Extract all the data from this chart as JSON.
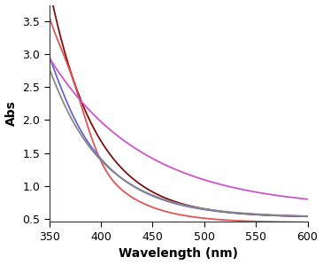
{
  "title": "",
  "xlabel": "Wavelength (nm)",
  "ylabel": "Abs",
  "xlim": [
    350,
    600
  ],
  "ylim": [
    0.45,
    3.75
  ],
  "yticks": [
    0.5,
    1.0,
    1.5,
    2.0,
    2.5,
    3.0,
    3.5
  ],
  "xticks": [
    350,
    400,
    450,
    500,
    550,
    600
  ],
  "curves": [
    {
      "name": "dark_maroon",
      "color": "#7b1010",
      "A": 3.5,
      "k": 0.022,
      "baseline": 0.52,
      "peak_wl": 350,
      "peak_boost": 0.0,
      "peak_sigma": 15
    },
    {
      "name": "red",
      "color": "#e05555",
      "A": 2.85,
      "k": 0.025,
      "baseline": 0.44,
      "peak_wl": 370,
      "peak_boost": 0.58,
      "peak_sigma": 17
    },
    {
      "name": "blue_purple",
      "color": "#6666cc",
      "A": 2.42,
      "k": 0.02,
      "baseline": 0.52,
      "peak_wl": 358,
      "peak_boost": 0.05,
      "peak_sigma": 12
    },
    {
      "name": "gray",
      "color": "#888888",
      "A": 2.25,
      "k": 0.019,
      "baseline": 0.52,
      "peak_wl": 355,
      "peak_boost": 0.02,
      "peak_sigma": 12
    },
    {
      "name": "magenta",
      "color": "#cc55cc",
      "A": 2.3,
      "k": 0.011,
      "baseline": 0.65,
      "peak_wl": 352,
      "peak_boost": 0.0,
      "peak_sigma": 12
    }
  ],
  "background_color": "#ffffff",
  "label_fontsize": 10,
  "tick_fontsize": 9,
  "linewidth": 1.3
}
